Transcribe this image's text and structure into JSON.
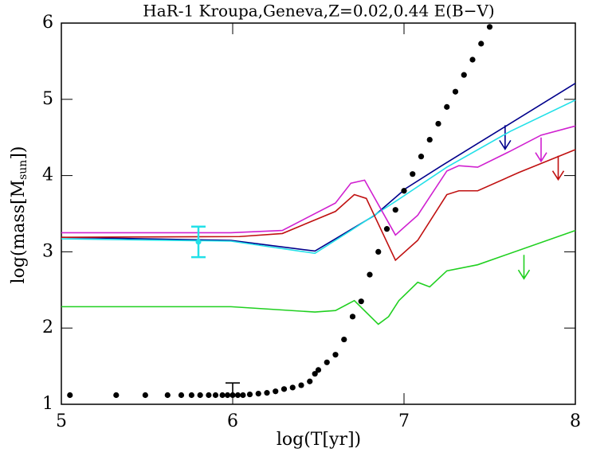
{
  "chart_data": {
    "type": "line",
    "title": "HaR-1 Kroupa,Geneva,Z=0.02,0.44 E(B−V)",
    "x_label": "log(T[yr])",
    "y_label": "log(mass[M",
    "y_label_sub": "sun",
    "y_label_end": "])",
    "xlim": [
      5,
      8
    ],
    "ylim": [
      1,
      6
    ],
    "xticks": [
      5,
      6,
      7,
      8
    ],
    "yticks": [
      1,
      2,
      3,
      4,
      5,
      6
    ],
    "series": [
      {
        "color": "#00008b",
        "x": [
          5,
          5.99,
          6.48,
          6.6,
          6.83,
          7.01,
          7.22,
          7.43,
          8
        ],
        "values": [
          3.19,
          3.15,
          3.01,
          3.17,
          3.48,
          3.83,
          4.13,
          4.42,
          5.21
        ],
        "arrow": {
          "x": 7.59,
          "y": 4.66
        }
      },
      {
        "color": "#22e0e8",
        "x": [
          5,
          5.99,
          6.48,
          6.69,
          6.97,
          7.25,
          7.62,
          8
        ],
        "values": [
          3.17,
          3.14,
          2.98,
          3.28,
          3.69,
          4.11,
          4.58,
          4.99
        ]
      },
      {
        "color": "#d020d0",
        "x": [
          5,
          5.99,
          6.29,
          6.6,
          6.69,
          6.77,
          6.95,
          7.08,
          7.25,
          7.32,
          7.43,
          7.62,
          7.8,
          8
        ],
        "values": [
          3.25,
          3.25,
          3.28,
          3.64,
          3.9,
          3.94,
          3.22,
          3.48,
          4.06,
          4.13,
          4.11,
          4.32,
          4.53,
          4.65
        ],
        "arrow": {
          "x": 7.8,
          "y": 4.5
        }
      },
      {
        "color": "#c01010",
        "x": [
          5,
          6.04,
          6.29,
          6.6,
          6.71,
          6.78,
          6.95,
          7.08,
          7.25,
          7.32,
          7.43,
          7.67,
          8
        ],
        "values": [
          3.19,
          3.2,
          3.24,
          3.53,
          3.75,
          3.7,
          2.89,
          3.15,
          3.75,
          3.8,
          3.8,
          4.04,
          4.34
        ],
        "arrow": {
          "x": 7.9,
          "y": 4.26
        }
      },
      {
        "color": "#20d020",
        "x": [
          5,
          5.99,
          6.48,
          6.6,
          6.71,
          6.85,
          6.91,
          6.97,
          7.08,
          7.15,
          7.25,
          7.43,
          8
        ],
        "values": [
          2.28,
          2.28,
          2.21,
          2.23,
          2.36,
          2.05,
          2.15,
          2.36,
          2.6,
          2.54,
          2.75,
          2.83,
          3.28
        ],
        "arrow": {
          "x": 7.7,
          "y": 2.96
        }
      }
    ],
    "errorbar": {
      "color": "#22e0e8",
      "x": 5.8,
      "y": 3.13,
      "low": 2.93,
      "high": 3.33
    },
    "dots": {
      "color": "#000000",
      "x": [
        5.05,
        5.32,
        5.49,
        5.62,
        5.7,
        5.76,
        5.81,
        5.86,
        5.9,
        5.94,
        5.97,
        6.0,
        6.03,
        6.06,
        6.1,
        6.15,
        6.2,
        6.25,
        6.3,
        6.35,
        6.4,
        6.45,
        6.48,
        6.5,
        6.55,
        6.6,
        6.65,
        6.7,
        6.75,
        6.8,
        6.85,
        6.9,
        6.95,
        7.0,
        7.05,
        7.1,
        7.15,
        7.2,
        7.25,
        7.3,
        7.35,
        7.4,
        7.45,
        7.5
      ],
      "values": [
        1.12,
        1.12,
        1.12,
        1.12,
        1.12,
        1.12,
        1.12,
        1.12,
        1.12,
        1.12,
        1.12,
        1.12,
        1.12,
        1.12,
        1.13,
        1.14,
        1.15,
        1.17,
        1.2,
        1.22,
        1.25,
        1.3,
        1.4,
        1.45,
        1.55,
        1.65,
        1.85,
        2.15,
        2.35,
        2.7,
        3.0,
        3.3,
        3.55,
        3.8,
        4.02,
        4.25,
        4.47,
        4.68,
        4.9,
        5.1,
        5.32,
        5.52,
        5.73,
        5.95
      ]
    },
    "upper_marker": {
      "x": 6.0,
      "low": 1.12,
      "high": 1.28
    }
  }
}
